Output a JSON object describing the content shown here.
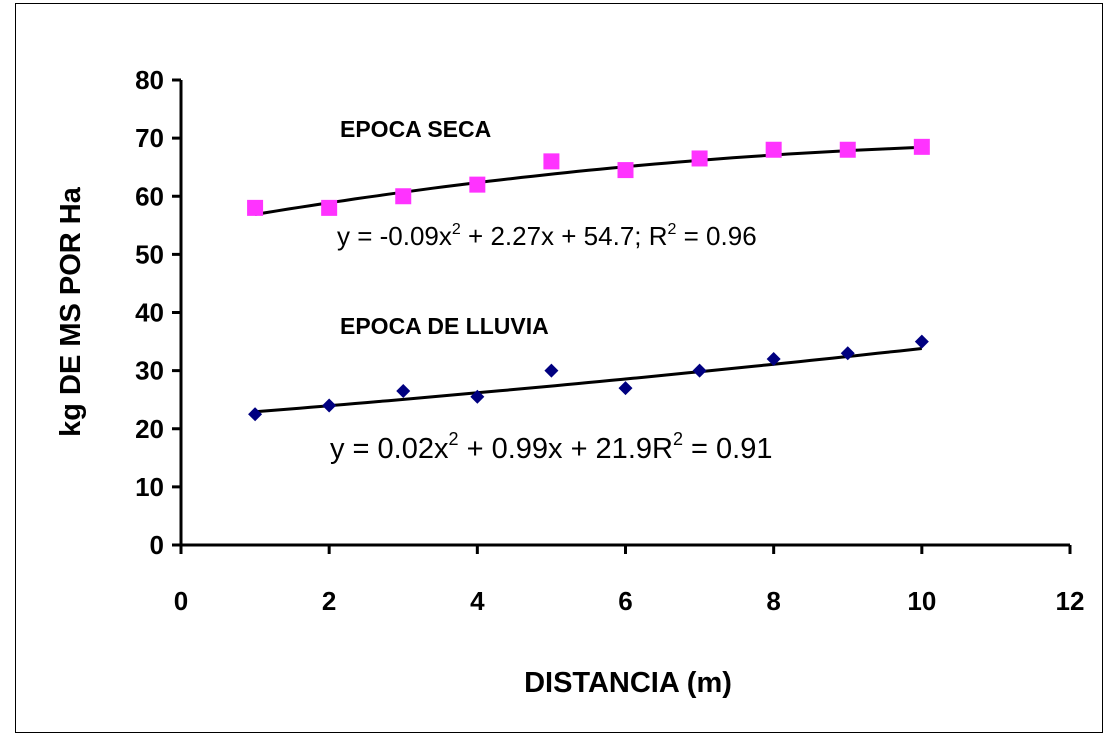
{
  "chart_data": {
    "type": "scatter",
    "title": "",
    "xlabel": "DISTANCIA (m)",
    "ylabel": "kg DE MS POR Ha",
    "xlim": [
      0,
      12
    ],
    "ylim": [
      0,
      80
    ],
    "xticks": [
      0,
      2,
      4,
      6,
      8,
      10,
      12
    ],
    "yticks": [
      0,
      10,
      20,
      30,
      40,
      50,
      60,
      70,
      80
    ],
    "x_tick_labels": [
      "0",
      "2",
      "4",
      "6",
      "8",
      "10",
      "12"
    ],
    "y_tick_labels": [
      "0",
      "10",
      "20",
      "30",
      "40",
      "50",
      "60",
      "70",
      "80"
    ],
    "grid": false,
    "series": [
      {
        "name": "EPOCA SECA",
        "marker": "square",
        "color": "#FF33FF",
        "x": [
          1,
          2,
          3,
          4,
          5,
          6,
          7,
          8,
          9,
          10
        ],
        "values": [
          58,
          58,
          60,
          62,
          66,
          64.5,
          66.5,
          68,
          68,
          68.5
        ],
        "trendline": {
          "a": -0.09,
          "b": 2.27,
          "c": 54.7,
          "equation_parts": [
            "y = -0.09x",
            "2",
            " + 2.27x + 54.7; R",
            "2",
            " = 0.96"
          ]
        }
      },
      {
        "name": "EPOCA DE LLUVIA",
        "marker": "diamond",
        "color": "#000080",
        "x": [
          1,
          2,
          3,
          4,
          5,
          6,
          7,
          8,
          9,
          10
        ],
        "values": [
          22.5,
          24,
          26.5,
          25.5,
          30,
          27,
          30,
          32,
          33,
          35
        ],
        "trendline": {
          "a": 0.02,
          "b": 0.99,
          "c": 21.9,
          "equation_parts": [
            "y = 0.02x",
            "2",
            " + 0.99x + 21.9R",
            "2",
            " = 0.91"
          ]
        }
      }
    ]
  }
}
